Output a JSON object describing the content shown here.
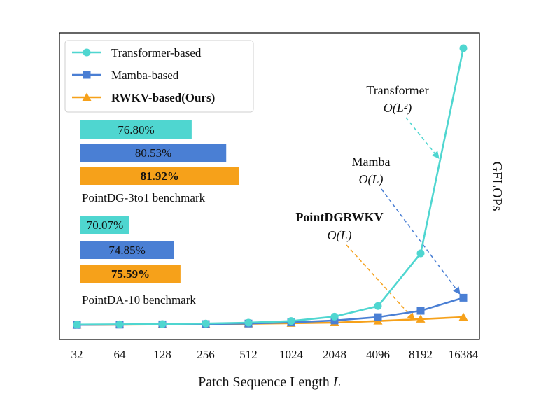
{
  "chart_data": {
    "type": "line",
    "x": [
      "32",
      "64",
      "128",
      "256",
      "512",
      "1024",
      "2048",
      "4096",
      "8192",
      "16384"
    ],
    "xlabel": "Patch Sequence Length",
    "xlabel_var": "L",
    "ylabel": "GFLOPs",
    "ylim": [
      0,
      100
    ],
    "grid": false,
    "legend_position": "top-left",
    "series": [
      {
        "name": "Transformer-based",
        "marker": "circle",
        "color": "#4fd6d0",
        "values": [
          0.3,
          0.4,
          0.5,
          0.7,
          1.0,
          1.6,
          3.2,
          7.0,
          26.0,
          100.0
        ]
      },
      {
        "name": "Mamba-based",
        "marker": "square",
        "color": "#4a7fd4",
        "values": [
          0.2,
          0.3,
          0.4,
          0.5,
          0.7,
          1.1,
          1.8,
          3.0,
          5.3,
          10.0
        ]
      },
      {
        "name": "RWKV-based(Ours)",
        "marker": "triangle",
        "color": "#f6a11a",
        "bold": true,
        "values": [
          0.2,
          0.25,
          0.35,
          0.45,
          0.6,
          0.8,
          1.0,
          1.6,
          2.3,
          3.0
        ]
      }
    ],
    "annotations": [
      {
        "label": "Transformer",
        "complexity": "O(L²)",
        "color": "#4fd6d0"
      },
      {
        "label": "Mamba",
        "complexity": "O(L)",
        "color": "#4a7fd4"
      },
      {
        "label": "PointDGRWKV",
        "complexity": "O(L)",
        "color": "#f6a11a",
        "bold": true
      }
    ],
    "benchmarks": [
      {
        "name": "PointDG-3to1 benchmark",
        "bars": [
          {
            "label": "76.80%",
            "value": 76.8,
            "color": "#4fd6d0"
          },
          {
            "label": "80.53%",
            "value": 80.53,
            "color": "#4a7fd4"
          },
          {
            "label": "81.92%",
            "value": 81.92,
            "color": "#f6a11a",
            "bold": true
          }
        ]
      },
      {
        "name": "PointDA-10 benchmark",
        "bars": [
          {
            "label": "70.07%",
            "value": 70.07,
            "color": "#4fd6d0"
          },
          {
            "label": "74.85%",
            "value": 74.85,
            "color": "#4a7fd4"
          },
          {
            "label": "75.59%",
            "value": 75.59,
            "color": "#f6a11a",
            "bold": true
          }
        ]
      }
    ]
  }
}
